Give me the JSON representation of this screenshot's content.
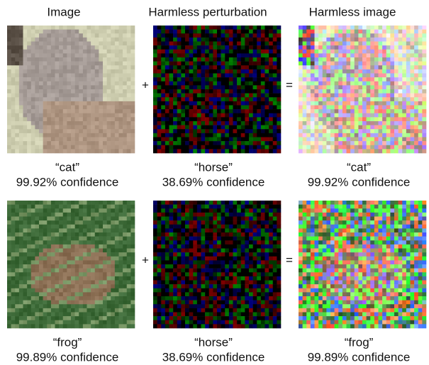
{
  "headers": [
    "Image",
    "Harmless perturbation",
    "Harmless image"
  ],
  "rows": [
    {
      "operators": [
        "+",
        "="
      ],
      "cells": [
        {
          "label": "“cat”",
          "confidence": "99.92% confidence"
        },
        {
          "label": "“horse”",
          "confidence": "38.69% confidence"
        },
        {
          "label": "“cat”",
          "confidence": "99.92% confidence"
        }
      ]
    },
    {
      "operators": [
        "+",
        "="
      ],
      "cells": [
        {
          "label": "“frog”",
          "confidence": "99.89% confidence"
        },
        {
          "label": "“horse”",
          "confidence": "38.69% confidence"
        },
        {
          "label": "“frog”",
          "confidence": "99.89% confidence"
        }
      ]
    }
  ]
}
